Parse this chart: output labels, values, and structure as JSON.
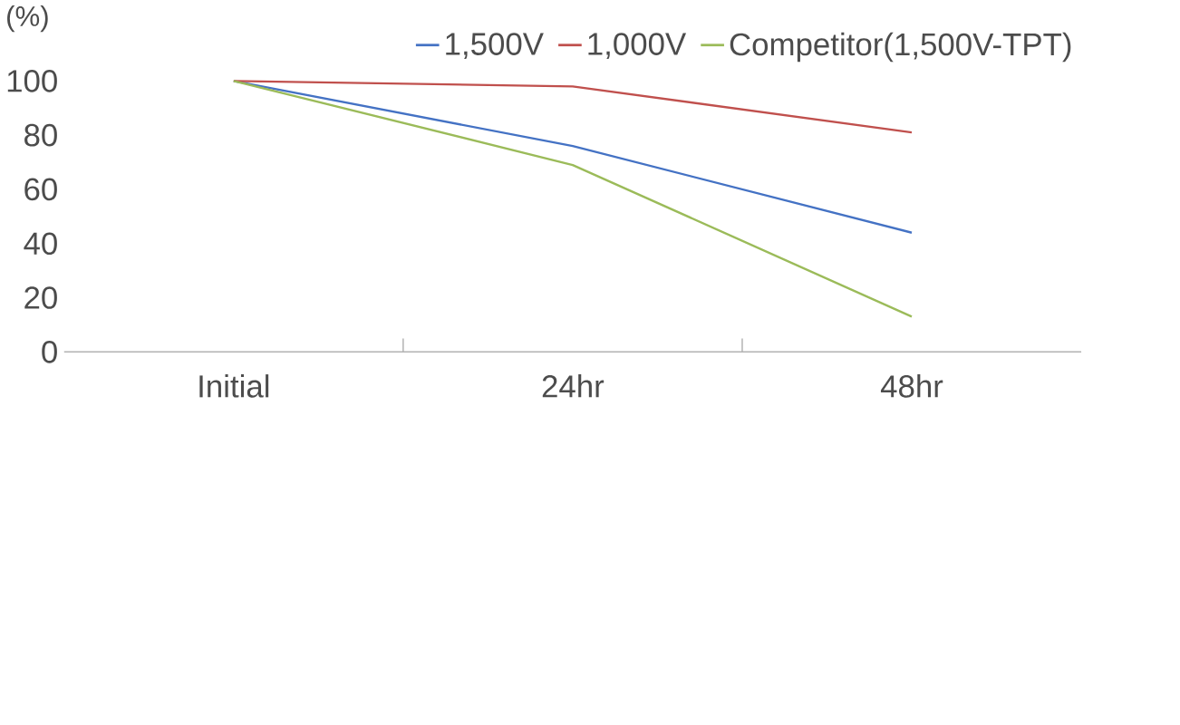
{
  "chart_data": {
    "type": "line",
    "ylabel": "(%)",
    "categories": [
      "Initial",
      "24hr",
      "48hr"
    ],
    "series": [
      {
        "name": "1,500V",
        "color": "#4472c4",
        "values": [
          100,
          76,
          44
        ]
      },
      {
        "name": "1,000V",
        "color": "#c0504d",
        "values": [
          100,
          98,
          81
        ]
      },
      {
        "name": "Competitor(1,500V-TPT)",
        "color": "#9bbb59",
        "values": [
          100,
          69,
          13
        ]
      }
    ],
    "ylim": [
      0,
      100
    ],
    "yticks": [
      0,
      20,
      40,
      60,
      80,
      100
    ],
    "grid": false,
    "legend": "top right",
    "marker": "none",
    "line_style": "solid"
  }
}
